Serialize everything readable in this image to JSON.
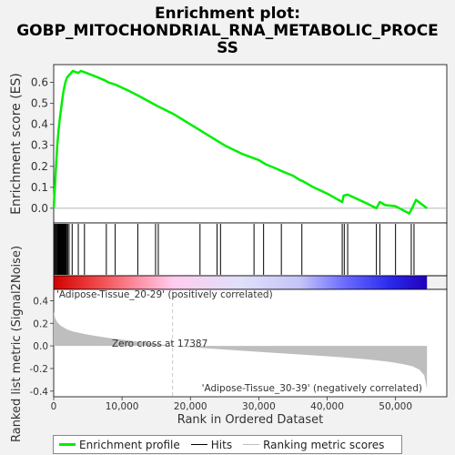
{
  "chart_data": {
    "type": "line",
    "title_lines": [
      "Enrichment plot:",
      "GOBP_MITOCHONDRIAL_RNA_METABOLIC_PROCE",
      "SS"
    ],
    "ylabel_top": "Enrichment score (ES)",
    "ylabel_bottom": "Ranked list metric (Signal2Noise)",
    "xlabel": "Rank in Ordered Dataset",
    "x_range": [
      0,
      57500
    ],
    "es_ylim": [
      -0.07,
      0.685
    ],
    "metric_ylim": [
      -0.45,
      0.5
    ],
    "x_ticks": [
      0,
      10000,
      20000,
      30000,
      40000,
      50000
    ],
    "x_tick_labels": [
      "0",
      "10,000",
      "20,000",
      "30,000",
      "40,000",
      "50,000"
    ],
    "es_ticks": [
      0.0,
      0.1,
      0.2,
      0.3,
      0.4,
      0.5,
      0.6
    ],
    "es_tick_labels": [
      "0.0",
      "0.1",
      "0.2",
      "0.3",
      "0.4",
      "0.5",
      "0.6"
    ],
    "metric_ticks": [
      -0.4,
      -0.2,
      0.0,
      0.2,
      0.4
    ],
    "metric_tick_labels": [
      "-0.4",
      "-0.2",
      "0.0",
      "0.2",
      "0.4"
    ],
    "total_ranks": 54600,
    "zero_cross": 17387,
    "zero_cross_label": "Zero cross at 17387",
    "positive_label": "'Adipose-Tissue_20-29' (positively correlated)",
    "negative_label": "'Adipose-Tissue_30-39' (negatively correlated)",
    "enrichment_profile": {
      "x": [
        0,
        150,
        300,
        500,
        700,
        900,
        1100,
        1300,
        1500,
        1700,
        1900,
        2100,
        2400,
        2800,
        3200,
        3600,
        4000,
        4400,
        4800,
        6000,
        7500,
        8000,
        9000,
        10000,
        11000,
        12500,
        15000,
        17500,
        20000,
        22500,
        25000,
        27500,
        30000,
        31000,
        32500,
        33500,
        35000,
        36000,
        36400,
        38000,
        40000,
        42200,
        42400,
        43000,
        44000,
        46000,
        47200,
        47700,
        48500,
        50000,
        52000,
        52500,
        53000,
        54600
      ],
      "es": [
        0.0,
        0.08,
        0.18,
        0.29,
        0.37,
        0.43,
        0.48,
        0.53,
        0.57,
        0.6,
        0.62,
        0.63,
        0.64,
        0.655,
        0.65,
        0.645,
        0.655,
        0.65,
        0.645,
        0.63,
        0.61,
        0.6,
        0.59,
        0.575,
        0.56,
        0.535,
        0.49,
        0.45,
        0.4,
        0.35,
        0.3,
        0.26,
        0.23,
        0.21,
        0.19,
        0.175,
        0.155,
        0.135,
        0.13,
        0.1,
        0.07,
        0.03,
        0.06,
        0.065,
        0.05,
        0.02,
        0.0,
        0.03,
        0.015,
        0.01,
        -0.025,
        0.005,
        0.04,
        0.0
      ]
    },
    "hits": [
      120,
      250,
      380,
      500,
      600,
      700,
      800,
      900,
      1000,
      1100,
      1200,
      1300,
      1400,
      1500,
      1600,
      1700,
      1800,
      1900,
      2050,
      2250,
      2700,
      3600,
      4500,
      7700,
      9000,
      12300,
      14900,
      15300,
      21400,
      23900,
      24400,
      29300,
      30700,
      33300,
      36300,
      42200,
      42500,
      43000,
      47200,
      47700,
      50000,
      52300,
      52700
    ],
    "metric_curve": {
      "x": [
        0,
        200,
        500,
        1000,
        2000,
        3000,
        5000,
        8000,
        12000,
        17387,
        22000,
        27000,
        32000,
        37000,
        42000,
        46000,
        49000,
        51000,
        52500,
        53500,
        54200,
        54600
      ],
      "y": [
        0.3,
        0.25,
        0.21,
        0.18,
        0.145,
        0.125,
        0.1,
        0.07,
        0.04,
        0.0,
        -0.02,
        -0.04,
        -0.06,
        -0.08,
        -0.1,
        -0.12,
        -0.14,
        -0.16,
        -0.18,
        -0.21,
        -0.26,
        -0.38
      ]
    },
    "colors": {
      "profile": "#00ee00",
      "hits": "#000000",
      "metric_fill": "#bebebe",
      "zero_line": "#c8c8c8",
      "positive_text": "#ff0000",
      "negative_text": "#0000ff",
      "plot_bg": "#ffffff"
    },
    "legend": [
      {
        "label": "Enrichment profile",
        "color": "#00ee00",
        "kind": "thick"
      },
      {
        "label": "Hits",
        "color": "#000000",
        "kind": "thin"
      },
      {
        "label": "Ranking metric scores",
        "color": "#bebebe",
        "kind": "thin"
      }
    ]
  }
}
